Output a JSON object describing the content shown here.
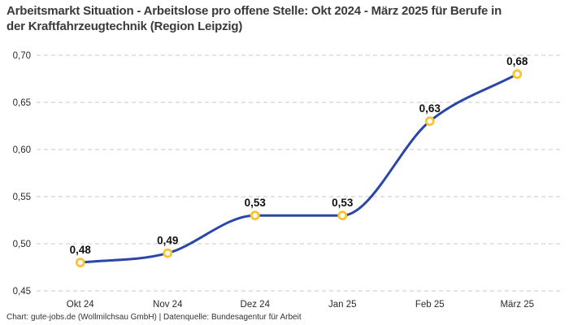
{
  "header": {
    "title": "Arbeitsmarkt Situation - Arbeitslose pro offene Stelle: Okt 2024 - März 2025 für Berufe in der Kraftfahrzeugtechnik (Region Leipzig)"
  },
  "footer": {
    "credit": "Chart: gute-jobs.de (Wollmilchsau GmbH) | Datenquelle: Bundesagentur für Arbeit"
  },
  "colors": {
    "line": "#2a46a8",
    "marker_stroke": "#fbc32d",
    "marker_fill": "#ffffff",
    "grid": "#c9c9c9",
    "title_text": "#3a3a3a",
    "axis_text": "#2b2b2b",
    "value_label_text": "#111111",
    "background": "#ffffff"
  },
  "chart_data": {
    "type": "line",
    "title": "Arbeitsmarkt Situation - Arbeitslose pro offene Stelle: Okt 2024 - März 2025 für Berufe in der Kraftfahrzeugtechnik (Region Leipzig)",
    "categories": [
      "Okt 24",
      "Nov 24",
      "Dez 24",
      "Jan 25",
      "Feb 25",
      "März 25"
    ],
    "values": [
      0.48,
      0.49,
      0.53,
      0.53,
      0.63,
      0.68
    ],
    "value_labels": [
      "0,48",
      "0,49",
      "0,53",
      "0,53",
      "0,63",
      "0,68"
    ],
    "xlabel": "",
    "ylabel": "",
    "ylim": [
      0.45,
      0.7
    ],
    "yticks": [
      0.45,
      0.5,
      0.55,
      0.6,
      0.65,
      0.7
    ],
    "ytick_labels": [
      "0,45",
      "0,50",
      "0,55",
      "0,60",
      "0,65",
      "0,70"
    ],
    "grid": "horizontal-dashed",
    "legend": "none",
    "curve": "smooth-monotone",
    "marker": "open-circle"
  }
}
